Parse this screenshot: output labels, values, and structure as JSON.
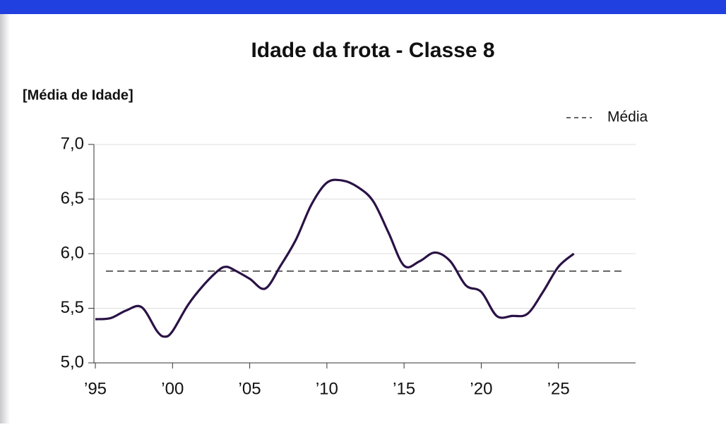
{
  "chart_data": {
    "type": "line",
    "title": "Idade da frota - Classe 8",
    "y_label": "[Média de Idade]",
    "x": [
      1995,
      1996,
      1997,
      1998,
      1999,
      1999.5,
      2000,
      2001,
      2002,
      2003,
      2003.5,
      2004,
      2005,
      2006,
      2007,
      2008,
      2009,
      2010,
      2011,
      2012,
      2013,
      2014,
      2015,
      2016,
      2017,
      2018,
      2019,
      2020,
      2021,
      2022,
      2023,
      2024,
      2025,
      2026
    ],
    "series": [
      {
        "color": "#2a1245",
        "values": [
          5.4,
          5.41,
          5.48,
          5.51,
          5.29,
          5.24,
          5.29,
          5.53,
          5.71,
          5.85,
          5.88,
          5.85,
          5.77,
          5.68,
          5.89,
          6.13,
          6.45,
          6.65,
          6.67,
          6.61,
          6.48,
          6.19,
          5.89,
          5.93,
          6.01,
          5.93,
          5.71,
          5.65,
          5.43,
          5.43,
          5.45,
          5.65,
          5.88,
          6.0
        ]
      }
    ],
    "mean": {
      "name": "Média",
      "value": 5.84,
      "color": "#333333"
    },
    "xlim": [
      1995,
      2030
    ],
    "xticks": [
      {
        "value": 1995,
        "label": "’95"
      },
      {
        "value": 2000,
        "label": "’00"
      },
      {
        "value": 2005,
        "label": "’05"
      },
      {
        "value": 2010,
        "label": "’10"
      },
      {
        "value": 2015,
        "label": "’15"
      },
      {
        "value": 2020,
        "label": "’20"
      },
      {
        "value": 2025,
        "label": "’25"
      }
    ],
    "ylim": [
      5,
      7
    ],
    "yticks": [
      {
        "value": 5,
        "label": "5,0"
      },
      {
        "value": 5.5,
        "label": "5,5"
      },
      {
        "value": 6,
        "label": "6,0"
      },
      {
        "value": 6.5,
        "label": "6,5"
      },
      {
        "value": 7,
        "label": "7,0"
      }
    ],
    "grid": true,
    "legend": "upper right"
  }
}
